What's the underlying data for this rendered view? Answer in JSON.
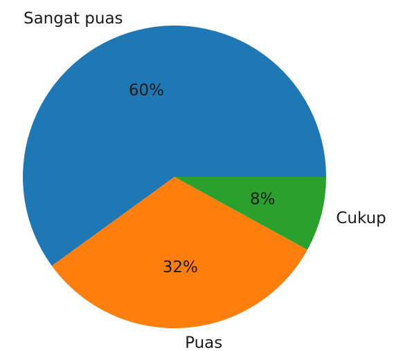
{
  "chart_data": {
    "type": "pie",
    "title": "",
    "categories": [
      "Sangat puas",
      "Puas",
      "Cukup"
    ],
    "values": [
      60,
      32,
      8
    ],
    "percent_labels": [
      "60%",
      "32%",
      "8%"
    ],
    "colors": [
      "#1f77b4",
      "#ff7f0e",
      "#2ca02c"
    ],
    "start_angle_deg": 0,
    "direction": "counterclockwise",
    "legend": "none"
  }
}
